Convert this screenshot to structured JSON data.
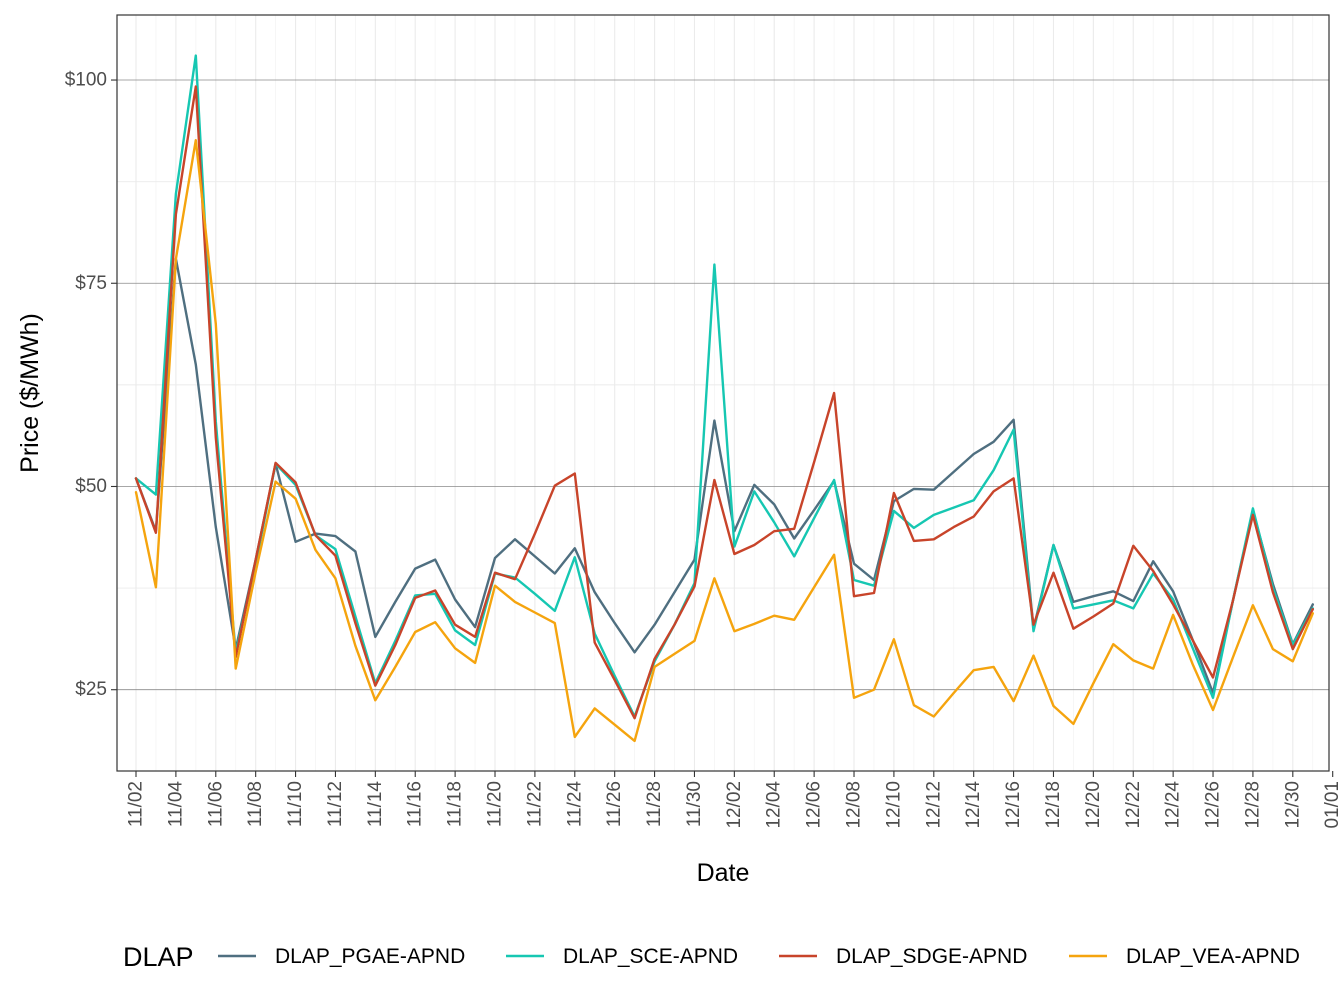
{
  "chart_data": {
    "type": "line",
    "xlabel": "Date",
    "ylabel": "Price ($/MWh)",
    "x_start": "2023-11-02",
    "x_ticks": [
      "11/02",
      "11/04",
      "11/06",
      "11/08",
      "11/10",
      "11/12",
      "11/14",
      "11/16",
      "11/18",
      "11/20",
      "11/22",
      "11/24",
      "11/26",
      "11/28",
      "11/30",
      "12/02",
      "12/04",
      "12/06",
      "12/08",
      "12/10",
      "12/12",
      "12/14",
      "12/16",
      "12/18",
      "12/20",
      "12/22",
      "12/24",
      "12/26",
      "12/28",
      "12/30",
      "01/01"
    ],
    "y_ticks": [
      {
        "value": 25,
        "label": "$25"
      },
      {
        "value": 50,
        "label": "$50"
      },
      {
        "value": 75,
        "label": "$75"
      },
      {
        "value": 100,
        "label": "$100"
      }
    ],
    "ylim": [
      15,
      108
    ],
    "grid": true,
    "legend": {
      "title": "DLAP",
      "position": "bottom"
    },
    "series": [
      {
        "name": "DLAP_PGAE-APND",
        "color": "#4f6f80",
        "values": [
          51,
          44.5,
          78,
          65,
          45,
          30,
          41,
          52.8,
          43.2,
          44.2,
          43.9,
          42,
          31.5,
          35.8,
          39.9,
          41,
          36.1,
          32.7,
          41.2,
          43.5,
          41.4,
          39.3,
          42.4,
          37,
          33.2,
          29.6,
          33,
          37,
          41,
          58.1,
          44.5,
          50.2,
          47.8,
          43.6,
          47.1,
          50.7,
          40.5,
          38.5,
          48.2,
          49.7,
          49.6,
          51.8,
          54,
          55.5,
          58.2,
          32.5,
          42.8,
          35.8,
          36.5,
          37.1,
          35.9,
          40.8,
          37.1,
          31,
          24.6,
          36,
          47,
          38,
          30.6,
          35.5
        ]
      },
      {
        "name": "DLAP_SCE-APND",
        "color": "#16c7b2",
        "values": [
          51,
          49,
          86,
          103,
          58,
          29.5,
          40.5,
          52.8,
          50.2,
          44,
          42.3,
          34,
          25.8,
          31,
          36.6,
          36.8,
          32.3,
          30.5,
          39.3,
          38.8,
          36.8,
          34.7,
          41.3,
          31.9,
          26.7,
          21.7,
          28.5,
          33,
          38.1,
          77.3,
          42.6,
          49.4,
          45.6,
          41.4,
          46.1,
          50.8,
          38.5,
          37.8,
          47,
          44.9,
          46.5,
          47.4,
          48.3,
          52,
          57,
          32.2,
          42.8,
          35,
          35.5,
          36,
          35,
          39.3,
          36.1,
          30,
          24,
          36,
          47.3,
          37.5,
          30.5,
          35
        ]
      },
      {
        "name": "DLAP_SDGE-APND",
        "color": "#c8442a",
        "values": [
          51,
          44.3,
          83.5,
          99.2,
          56,
          29,
          41,
          52.9,
          50.5,
          44,
          41.5,
          33.2,
          25.5,
          30.5,
          36.3,
          37.2,
          33,
          31.5,
          39.4,
          38.6,
          44.2,
          50.1,
          51.6,
          30.8,
          26.2,
          21.5,
          28.8,
          33,
          37.7,
          50.8,
          41.7,
          42.8,
          44.5,
          44.8,
          53,
          61.5,
          36.5,
          36.9,
          49.2,
          43.3,
          43.5,
          45,
          46.3,
          49.4,
          51,
          33,
          39.4,
          32.5,
          34,
          35.6,
          42.7,
          39.6,
          35.5,
          31,
          26.5,
          36,
          46.5,
          37,
          30,
          34.9
        ]
      },
      {
        "name": "DLAP_VEA-APND",
        "color": "#f5a40e",
        "values": [
          49.3,
          37.6,
          78,
          92.6,
          70,
          27.6,
          39.5,
          50.6,
          48.5,
          42.2,
          38.7,
          30.4,
          23.7,
          27.8,
          32.1,
          33.3,
          30.1,
          28.3,
          37.8,
          35.8,
          34.5,
          33.2,
          19.2,
          22.7,
          20.7,
          18.7,
          27.8,
          29.4,
          31,
          38.7,
          32.2,
          33.1,
          34.1,
          33.6,
          37.6,
          41.6,
          24,
          25,
          31.2,
          23.1,
          21.7,
          24.6,
          27.4,
          27.8,
          23.6,
          29.2,
          23,
          20.8,
          25.8,
          30.6,
          28.6,
          27.6,
          34.2,
          28,
          22.5,
          29,
          35.4,
          30,
          28.5,
          34.4
        ]
      }
    ]
  }
}
